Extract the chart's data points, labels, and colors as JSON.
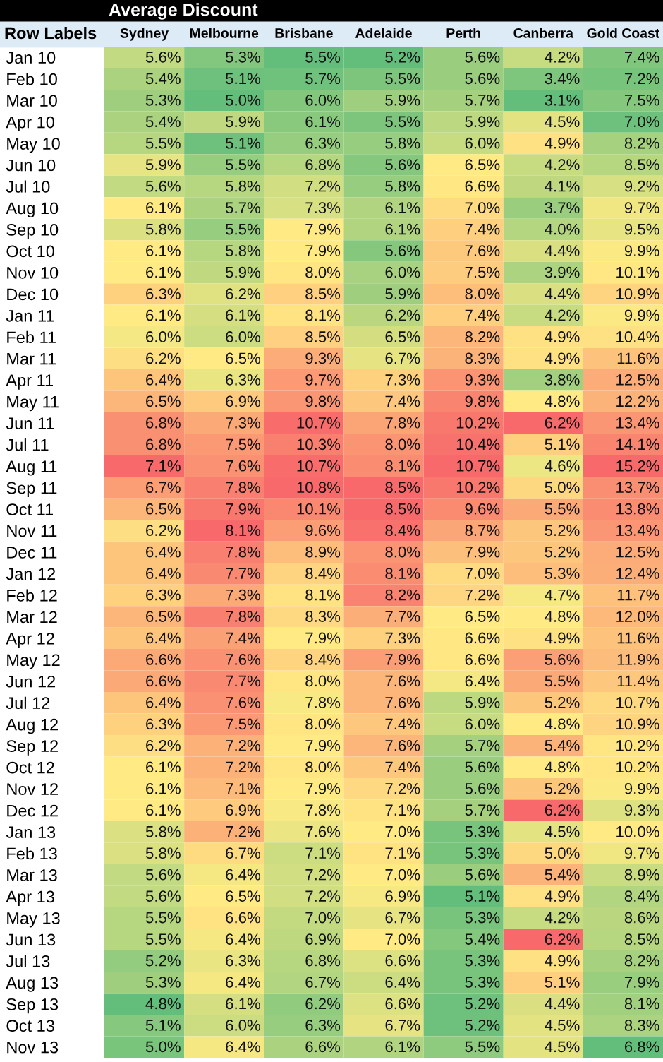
{
  "chart_data": {
    "type": "heatmap",
    "title": "Average Discount",
    "ylabel": "Row Labels",
    "categories": [
      "Sydney",
      "Melbourne",
      "Brisbane",
      "Adelaide",
      "Perth",
      "Canberra",
      "Gold Coast"
    ],
    "y_categories": [
      "Jan 10",
      "Feb 10",
      "Mar 10",
      "Apr 10",
      "May 10",
      "Jun 10",
      "Jul 10",
      "Aug 10",
      "Sep 10",
      "Oct 10",
      "Nov 10",
      "Dec 10",
      "Jan 11",
      "Feb 11",
      "Mar 11",
      "Apr 11",
      "May 11",
      "Jun 11",
      "Jul 11",
      "Aug 11",
      "Sep 11",
      "Oct 11",
      "Nov 11",
      "Dec 11",
      "Jan 12",
      "Feb 12",
      "Mar 12",
      "Apr 12",
      "May 12",
      "Jun 12",
      "Jul 12",
      "Aug 12",
      "Sep 12",
      "Oct 12",
      "Nov 12",
      "Dec 12",
      "Jan 13",
      "Feb 13",
      "Mar 13",
      "Apr 13",
      "May 13",
      "Jun 13",
      "Jul 13",
      "Aug 13",
      "Sep 13",
      "Oct 13",
      "Nov 13"
    ],
    "colors": [
      "#63be7b",
      "#ffeb84",
      "#f8696b"
    ],
    "cells": [
      [
        5.6,
        5.3,
        5.5,
        5.2,
        5.6,
        4.2,
        7.4
      ],
      [
        5.4,
        5.1,
        5.7,
        5.5,
        5.6,
        3.4,
        7.2
      ],
      [
        5.3,
        5.0,
        6.0,
        5.9,
        5.7,
        3.1,
        7.5
      ],
      [
        5.4,
        5.9,
        6.1,
        5.5,
        5.9,
        4.5,
        7.0
      ],
      [
        5.5,
        5.1,
        6.3,
        5.8,
        6.0,
        4.9,
        8.2
      ],
      [
        5.9,
        5.5,
        6.8,
        5.6,
        6.5,
        4.2,
        8.5
      ],
      [
        5.6,
        5.8,
        7.2,
        5.8,
        6.6,
        4.1,
        9.2
      ],
      [
        6.1,
        5.7,
        7.3,
        6.1,
        7.0,
        3.7,
        9.7
      ],
      [
        5.8,
        5.5,
        7.9,
        6.1,
        7.4,
        4.0,
        9.5
      ],
      [
        6.1,
        5.8,
        7.9,
        5.6,
        7.6,
        4.4,
        9.9
      ],
      [
        6.1,
        5.9,
        8.0,
        6.0,
        7.5,
        3.9,
        10.1
      ],
      [
        6.3,
        6.2,
        8.5,
        5.9,
        8.0,
        4.4,
        10.9
      ],
      [
        6.1,
        6.1,
        8.1,
        6.2,
        7.4,
        4.2,
        9.9
      ],
      [
        6.0,
        6.0,
        8.5,
        6.5,
        8.2,
        4.9,
        10.4
      ],
      [
        6.2,
        6.5,
        9.3,
        6.7,
        8.3,
        4.9,
        11.6
      ],
      [
        6.4,
        6.3,
        9.7,
        7.3,
        9.3,
        3.8,
        12.5
      ],
      [
        6.5,
        6.9,
        9.8,
        7.4,
        9.8,
        4.8,
        12.2
      ],
      [
        6.8,
        7.3,
        10.7,
        7.8,
        10.2,
        6.2,
        13.4
      ],
      [
        6.8,
        7.5,
        10.3,
        8.0,
        10.4,
        5.1,
        14.1
      ],
      [
        7.1,
        7.6,
        10.7,
        8.1,
        10.7,
        4.6,
        15.2
      ],
      [
        6.7,
        7.8,
        10.8,
        8.5,
        10.2,
        5.0,
        13.7
      ],
      [
        6.5,
        7.9,
        10.1,
        8.5,
        9.6,
        5.5,
        13.8
      ],
      [
        6.2,
        8.1,
        9.6,
        8.4,
        8.7,
        5.2,
        13.4
      ],
      [
        6.4,
        7.8,
        8.9,
        8.0,
        7.9,
        5.2,
        12.5
      ],
      [
        6.4,
        7.7,
        8.4,
        8.1,
        7.0,
        5.3,
        12.4
      ],
      [
        6.3,
        7.3,
        8.1,
        8.2,
        7.2,
        4.7,
        11.7
      ],
      [
        6.5,
        7.8,
        8.3,
        7.7,
        6.5,
        4.8,
        12.0
      ],
      [
        6.4,
        7.4,
        7.9,
        7.3,
        6.6,
        4.9,
        11.6
      ],
      [
        6.6,
        7.6,
        8.4,
        7.9,
        6.6,
        5.6,
        11.9
      ],
      [
        6.6,
        7.7,
        8.0,
        7.6,
        6.4,
        5.5,
        11.4
      ],
      [
        6.4,
        7.6,
        7.8,
        7.6,
        5.9,
        5.2,
        10.7
      ],
      [
        6.3,
        7.5,
        8.0,
        7.4,
        6.0,
        4.8,
        10.9
      ],
      [
        6.2,
        7.2,
        7.9,
        7.6,
        5.7,
        5.4,
        10.2
      ],
      [
        6.1,
        7.2,
        8.0,
        7.4,
        5.6,
        4.8,
        10.2
      ],
      [
        6.1,
        7.1,
        7.9,
        7.2,
        5.6,
        5.2,
        9.9
      ],
      [
        6.1,
        6.9,
        7.8,
        7.1,
        5.7,
        6.2,
        9.3
      ],
      [
        5.8,
        7.2,
        7.6,
        7.0,
        5.3,
        4.5,
        10.0
      ],
      [
        5.8,
        6.7,
        7.1,
        7.1,
        5.3,
        5.0,
        9.7
      ],
      [
        5.6,
        6.4,
        7.2,
        7.0,
        5.6,
        5.4,
        8.9
      ],
      [
        5.6,
        6.5,
        7.2,
        6.9,
        5.1,
        4.9,
        8.4
      ],
      [
        5.5,
        6.6,
        7.0,
        6.7,
        5.3,
        4.2,
        8.6
      ],
      [
        5.5,
        6.4,
        6.9,
        7.0,
        5.4,
        6.2,
        8.5
      ],
      [
        5.2,
        6.3,
        6.8,
        6.6,
        5.3,
        4.9,
        8.2
      ],
      [
        5.3,
        6.4,
        6.7,
        6.4,
        5.3,
        5.1,
        7.9
      ],
      [
        4.8,
        6.1,
        6.2,
        6.6,
        5.2,
        4.4,
        8.1
      ],
      [
        5.1,
        6.0,
        6.3,
        6.7,
        5.2,
        4.5,
        8.3
      ],
      [
        5.0,
        6.4,
        6.6,
        6.1,
        5.5,
        4.5,
        6.8
      ]
    ],
    "cell_labels": [
      [
        "5.6%",
        "5.3%",
        "5.5%",
        "5.2%",
        "5.6%",
        "4.2%",
        "7.4%"
      ],
      [
        "5.4%",
        "5.1%",
        "5.7%",
        "5.5%",
        "5.6%",
        "3.4%",
        "7.2%"
      ],
      [
        "5.3%",
        "5.0%",
        "6.0%",
        "5.9%",
        "5.7%",
        "3.1%",
        "7.5%"
      ],
      [
        "5.4%",
        "5.9%",
        "6.1%",
        "5.5%",
        "5.9%",
        "4.5%",
        "7.0%"
      ],
      [
        "5.5%",
        "5.1%",
        "6.3%",
        "5.8%",
        "6.0%",
        "4.9%",
        "8.2%"
      ],
      [
        "5.9%",
        "5.5%",
        "6.8%",
        "5.6%",
        "6.5%",
        "4.2%",
        "8.5%"
      ],
      [
        "5.6%",
        "5.8%",
        "7.2%",
        "5.8%",
        "6.6%",
        "4.1%",
        "9.2%"
      ],
      [
        "6.1%",
        "5.7%",
        "7.3%",
        "6.1%",
        "7.0%",
        "3.7%",
        "9.7%"
      ],
      [
        "5.8%",
        "5.5%",
        "7.9%",
        "6.1%",
        "7.4%",
        "4.0%",
        "9.5%"
      ],
      [
        "6.1%",
        "5.8%",
        "7.9%",
        "5.6%",
        "7.6%",
        "4.4%",
        "9.9%"
      ],
      [
        "6.1%",
        "5.9%",
        "8.0%",
        "6.0%",
        "7.5%",
        "3.9%",
        "10.1%"
      ],
      [
        "6.3%",
        "6.2%",
        "8.5%",
        "5.9%",
        "8.0%",
        "4.4%",
        "10.9%"
      ],
      [
        "6.1%",
        "6.1%",
        "8.1%",
        "6.2%",
        "7.4%",
        "4.2%",
        "9.9%"
      ],
      [
        "6.0%",
        "6.0%",
        "8.5%",
        "6.5%",
        "8.2%",
        "4.9%",
        "10.4%"
      ],
      [
        "6.2%",
        "6.5%",
        "9.3%",
        "6.7%",
        "8.3%",
        "4.9%",
        "11.6%"
      ],
      [
        "6.4%",
        "6.3%",
        "9.7%",
        "7.3%",
        "9.3%",
        "3.8%",
        "12.5%"
      ],
      [
        "6.5%",
        "6.9%",
        "9.8%",
        "7.4%",
        "9.8%",
        "4.8%",
        "12.2%"
      ],
      [
        "6.8%",
        "7.3%",
        "10.7%",
        "7.8%",
        "10.2%",
        "6.2%",
        "13.4%"
      ],
      [
        "6.8%",
        "7.5%",
        "10.3%",
        "8.0%",
        "10.4%",
        "5.1%",
        "14.1%"
      ],
      [
        "7.1%",
        "7.6%",
        "10.7%",
        "8.1%",
        "10.7%",
        "4.6%",
        "15.2%"
      ],
      [
        "6.7%",
        "7.8%",
        "10.8%",
        "8.5%",
        "10.2%",
        "5.0%",
        "13.7%"
      ],
      [
        "6.5%",
        "7.9%",
        "10.1%",
        "8.5%",
        "9.6%",
        "5.5%",
        "13.8%"
      ],
      [
        "6.2%",
        "8.1%",
        "9.6%",
        "8.4%",
        "8.7%",
        "5.2%",
        "13.4%"
      ],
      [
        "6.4%",
        "7.8%",
        "8.9%",
        "8.0%",
        "7.9%",
        "5.2%",
        "12.5%"
      ],
      [
        "6.4%",
        "7.7%",
        "8.4%",
        "8.1%",
        "7.0%",
        "5.3%",
        "12.4%"
      ],
      [
        "6.3%",
        "7.3%",
        "8.1%",
        "8.2%",
        "7.2%",
        "4.7%",
        "11.7%"
      ],
      [
        "6.5%",
        "7.8%",
        "8.3%",
        "7.7%",
        "6.5%",
        "4.8%",
        "12.0%"
      ],
      [
        "6.4%",
        "7.4%",
        "7.9%",
        "7.3%",
        "6.6%",
        "4.9%",
        "11.6%"
      ],
      [
        "6.6%",
        "7.6%",
        "8.4%",
        "7.9%",
        "6.6%",
        "5.6%",
        "11.9%"
      ],
      [
        "6.6%",
        "7.7%",
        "8.0%",
        "7.6%",
        "6.4%",
        "5.5%",
        "11.4%"
      ],
      [
        "6.4%",
        "7.6%",
        "7.8%",
        "7.6%",
        "5.9%",
        "5.2%",
        "10.7%"
      ],
      [
        "6.3%",
        "7.5%",
        "8.0%",
        "7.4%",
        "6.0%",
        "4.8%",
        "10.9%"
      ],
      [
        "6.2%",
        "7.2%",
        "7.9%",
        "7.6%",
        "5.7%",
        "5.4%",
        "10.2%"
      ],
      [
        "6.1%",
        "7.2%",
        "8.0%",
        "7.4%",
        "5.6%",
        "4.8%",
        "10.2%"
      ],
      [
        "6.1%",
        "7.1%",
        "7.9%",
        "7.2%",
        "5.6%",
        "5.2%",
        "9.9%"
      ],
      [
        "6.1%",
        "6.9%",
        "7.8%",
        "7.1%",
        "5.7%",
        "6.2%",
        "9.3%"
      ],
      [
        "5.8%",
        "7.2%",
        "7.6%",
        "7.0%",
        "5.3%",
        "4.5%",
        "10.0%"
      ],
      [
        "5.8%",
        "6.7%",
        "7.1%",
        "7.1%",
        "5.3%",
        "5.0%",
        "9.7%"
      ],
      [
        "5.6%",
        "6.4%",
        "7.2%",
        "7.0%",
        "5.6%",
        "5.4%",
        "8.9%"
      ],
      [
        "5.6%",
        "6.5%",
        "7.2%",
        "6.9%",
        "5.1%",
        "4.9%",
        "8.4%"
      ],
      [
        "5.5%",
        "6.6%",
        "7.0%",
        "6.7%",
        "5.3%",
        "4.2%",
        "8.6%"
      ],
      [
        "5.5%",
        "6.4%",
        "6.9%",
        "7.0%",
        "5.4%",
        "6.2%",
        "8.5%"
      ],
      [
        "5.2%",
        "6.3%",
        "6.8%",
        "6.6%",
        "5.3%",
        "4.9%",
        "8.2%"
      ],
      [
        "5.3%",
        "6.4%",
        "6.7%",
        "6.4%",
        "5.3%",
        "5.1%",
        "7.9%"
      ],
      [
        "4.8%",
        "6.1%",
        "6.2%",
        "6.6%",
        "5.2%",
        "4.4%",
        "8.1%"
      ],
      [
        "5.1%",
        "6.0%",
        "6.3%",
        "6.7%",
        "5.2%",
        "4.5%",
        "8.3%"
      ],
      [
        "5.0%",
        "6.4%",
        "6.6%",
        "6.1%",
        "5.5%",
        "4.5%",
        "6.8%"
      ]
    ]
  }
}
